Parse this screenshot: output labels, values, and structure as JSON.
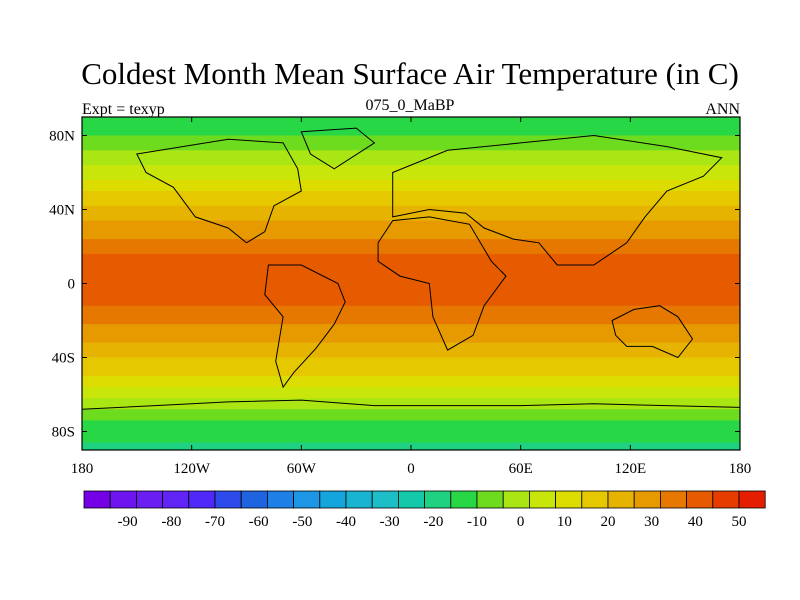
{
  "title": "Coldest Month Mean Surface Air Temperature (in C)",
  "subtitle_left": "Expt = texyp",
  "subtitle_center": "075_0_MaBP",
  "subtitle_right": "ANN",
  "map": {
    "lon_range": [
      -180,
      180
    ],
    "lat_range": [
      -90,
      90
    ],
    "x_ticks": [
      {
        "value": -180,
        "label": "180"
      },
      {
        "value": -120,
        "label": "120W"
      },
      {
        "value": -60,
        "label": "60W"
      },
      {
        "value": 0,
        "label": "0"
      },
      {
        "value": 60,
        "label": "60E"
      },
      {
        "value": 120,
        "label": "120E"
      },
      {
        "value": 180,
        "label": "180"
      }
    ],
    "y_ticks": [
      {
        "value": 80,
        "label": "80N"
      },
      {
        "value": 40,
        "label": "40N"
      },
      {
        "value": 0,
        "label": "0"
      },
      {
        "value": -40,
        "label": "40S"
      },
      {
        "value": -80,
        "label": "80S"
      }
    ],
    "field_profile": [
      {
        "lat": 90,
        "value": -15
      },
      {
        "lat": 85,
        "value": -13
      },
      {
        "lat": 80,
        "value": -10
      },
      {
        "lat": 74,
        "value": -5
      },
      {
        "lat": 68,
        "value": 0
      },
      {
        "lat": 60,
        "value": 5
      },
      {
        "lat": 52,
        "value": 12
      },
      {
        "lat": 44,
        "value": 18
      },
      {
        "lat": 36,
        "value": 24
      },
      {
        "lat": 28,
        "value": 30
      },
      {
        "lat": 20,
        "value": 35
      },
      {
        "lat": 12,
        "value": 40
      },
      {
        "lat": 4,
        "value": 41
      },
      {
        "lat": -4,
        "value": 41
      },
      {
        "lat": -12,
        "value": 38
      },
      {
        "lat": -20,
        "value": 33
      },
      {
        "lat": -28,
        "value": 28
      },
      {
        "lat": -36,
        "value": 23
      },
      {
        "lat": -44,
        "value": 18
      },
      {
        "lat": -52,
        "value": 12
      },
      {
        "lat": -60,
        "value": 5
      },
      {
        "lat": -66,
        "value": -2
      },
      {
        "lat": -72,
        "value": -8
      },
      {
        "lat": -80,
        "value": -14
      },
      {
        "lat": -90,
        "value": -18
      }
    ],
    "continents": [
      {
        "name": "north-america",
        "points": [
          [
            -150,
            70
          ],
          [
            -100,
            78
          ],
          [
            -70,
            76
          ],
          [
            -62,
            62
          ],
          [
            -60,
            50
          ],
          [
            -75,
            42
          ],
          [
            -80,
            28
          ],
          [
            -90,
            22
          ],
          [
            -100,
            30
          ],
          [
            -118,
            36
          ],
          [
            -130,
            52
          ],
          [
            -145,
            60
          ]
        ]
      },
      {
        "name": "south-america",
        "points": [
          [
            -78,
            10
          ],
          [
            -60,
            10
          ],
          [
            -40,
            0
          ],
          [
            -36,
            -10
          ],
          [
            -42,
            -22
          ],
          [
            -52,
            -35
          ],
          [
            -64,
            -48
          ],
          [
            -70,
            -56
          ],
          [
            -74,
            -42
          ],
          [
            -70,
            -18
          ],
          [
            -80,
            -6
          ]
        ]
      },
      {
        "name": "eurasia",
        "points": [
          [
            -10,
            36
          ],
          [
            -10,
            60
          ],
          [
            20,
            72
          ],
          [
            60,
            76
          ],
          [
            100,
            80
          ],
          [
            140,
            74
          ],
          [
            170,
            68
          ],
          [
            160,
            58
          ],
          [
            140,
            50
          ],
          [
            128,
            36
          ],
          [
            118,
            22
          ],
          [
            100,
            10
          ],
          [
            80,
            10
          ],
          [
            70,
            22
          ],
          [
            56,
            24
          ],
          [
            40,
            30
          ],
          [
            30,
            38
          ],
          [
            10,
            40
          ]
        ]
      },
      {
        "name": "africa",
        "points": [
          [
            -18,
            22
          ],
          [
            -10,
            34
          ],
          [
            10,
            36
          ],
          [
            32,
            32
          ],
          [
            44,
            12
          ],
          [
            52,
            4
          ],
          [
            40,
            -12
          ],
          [
            34,
            -28
          ],
          [
            20,
            -36
          ],
          [
            12,
            -18
          ],
          [
            10,
            0
          ],
          [
            -6,
            4
          ],
          [
            -18,
            12
          ]
        ]
      },
      {
        "name": "australia",
        "points": [
          [
            110,
            -20
          ],
          [
            122,
            -14
          ],
          [
            136,
            -12
          ],
          [
            146,
            -18
          ],
          [
            154,
            -30
          ],
          [
            146,
            -40
          ],
          [
            132,
            -34
          ],
          [
            118,
            -34
          ],
          [
            112,
            -28
          ]
        ]
      },
      {
        "name": "antarctica",
        "points": [
          [
            -180,
            -68
          ],
          [
            -140,
            -66
          ],
          [
            -100,
            -64
          ],
          [
            -60,
            -63
          ],
          [
            -20,
            -66
          ],
          [
            20,
            -66
          ],
          [
            60,
            -66
          ],
          [
            100,
            -65
          ],
          [
            140,
            -66
          ],
          [
            180,
            -67
          ],
          [
            180,
            -90
          ],
          [
            -180,
            -90
          ]
        ]
      },
      {
        "name": "greenland",
        "points": [
          [
            -60,
            82
          ],
          [
            -30,
            84
          ],
          [
            -20,
            76
          ],
          [
            -42,
            62
          ],
          [
            -55,
            70
          ]
        ]
      }
    ]
  },
  "colorbar": {
    "colors": [
      "#7400E6",
      "#6E14EE",
      "#6A1EF2",
      "#6024F6",
      "#5028FA",
      "#2D4BEB",
      "#1E64E1",
      "#1E7FE6",
      "#1E96E6",
      "#14A5DC",
      "#19B4D2",
      "#1EBEC8",
      "#14C8AA",
      "#1ED282",
      "#28D746",
      "#6EDC1E",
      "#AAE614",
      "#C8E60A",
      "#DCDC00",
      "#E6C800",
      "#E6B400",
      "#E69A00",
      "#E67800",
      "#E65A00",
      "#E63C00",
      "#E61E00"
    ],
    "min": -100,
    "step": 6,
    "labels": [
      "-90",
      "-80",
      "-70",
      "-60",
      "-50",
      "-40",
      "-30",
      "-20",
      "-10",
      "0",
      "10",
      "20",
      "30",
      "40",
      "50"
    ]
  }
}
